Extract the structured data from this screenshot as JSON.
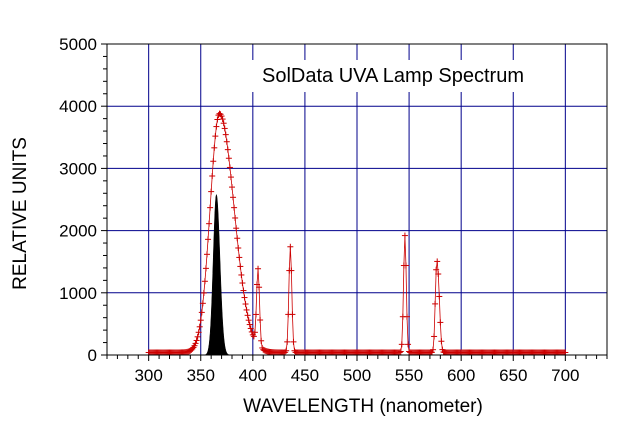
{
  "chart_data": {
    "type": "line",
    "title": "SolData UVA Lamp Spectrum",
    "xlabel": "WAVELENGTH (nanometer)",
    "ylabel": "RELATIVE UNITS",
    "xlim": [
      260,
      740
    ],
    "ylim": [
      0,
      5000
    ],
    "x_ticks": [
      300,
      350,
      400,
      450,
      500,
      550,
      600,
      650,
      700
    ],
    "y_ticks": [
      0,
      1000,
      2000,
      3000,
      4000,
      5000
    ],
    "grid": true,
    "colors": {
      "grid": "#00008b",
      "lamp_series": "#cc0000",
      "filled_series": "#000000"
    },
    "series": [
      {
        "style": "red-plus-markers",
        "x_start": 300,
        "x_end": 700,
        "x_step": 1,
        "baseline": 40,
        "peaks": [
          {
            "center": 368,
            "height": 3840,
            "sigma_left": 9,
            "sigma_right": 14
          },
          {
            "center": 405,
            "height": 1230,
            "sigma_left": 1.4,
            "sigma_right": 1.4
          },
          {
            "center": 436,
            "height": 1700,
            "sigma_left": 1.4,
            "sigma_right": 1.4
          },
          {
            "center": 546,
            "height": 1880,
            "sigma_left": 1.3,
            "sigma_right": 1.3
          },
          {
            "center": 578,
            "height": 1050,
            "sigma_left": 1.6,
            "sigma_right": 1.6
          },
          {
            "center": 576,
            "height": 850,
            "sigma_left": 1.2,
            "sigma_right": 1.2
          }
        ]
      },
      {
        "style": "black-filled",
        "peaks": [
          {
            "center": 365,
            "height": 2580,
            "sigma_left": 3.0,
            "sigma_right": 3.4
          }
        ],
        "x_start": 350,
        "x_end": 382,
        "x_step": 0.5,
        "baseline": 0
      }
    ]
  }
}
